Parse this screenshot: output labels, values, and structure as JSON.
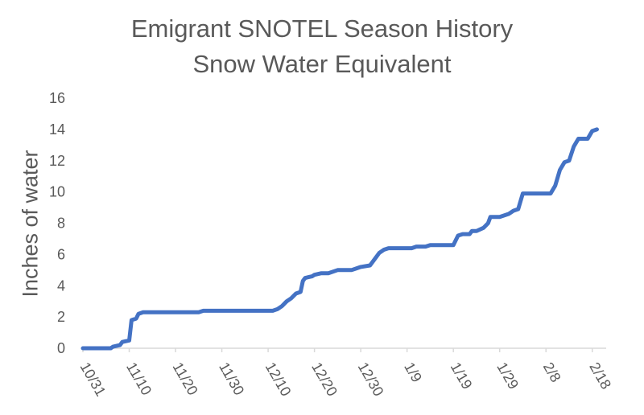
{
  "chart_data": {
    "type": "line",
    "title": "Emigrant SNOTEL Season History",
    "subtitle": "Snow Water Equivalent",
    "ylabel": "Inches of water",
    "xlabel": "",
    "ylim": [
      0,
      16
    ],
    "yticks": [
      0,
      2,
      4,
      6,
      8,
      10,
      12,
      14,
      16
    ],
    "xlim": [
      0,
      113
    ],
    "xticks": [
      {
        "label": "10/31",
        "day": 0
      },
      {
        "label": "11/10",
        "day": 10
      },
      {
        "label": "11/20",
        "day": 20
      },
      {
        "label": "11/30",
        "day": 30
      },
      {
        "label": "12/10",
        "day": 40
      },
      {
        "label": "12/20",
        "day": 50
      },
      {
        "label": "12/30",
        "day": 60
      },
      {
        "label": "1/9",
        "day": 70
      },
      {
        "label": "1/19",
        "day": 80
      },
      {
        "label": "1/29",
        "day": 90
      },
      {
        "label": "2/8",
        "day": 100
      },
      {
        "label": "2/18",
        "day": 110
      }
    ],
    "grid": false,
    "line_color": "#4472C4",
    "series": [
      {
        "name": "",
        "points": [
          [
            0,
            0
          ],
          [
            6,
            0
          ],
          [
            6.5,
            0.1
          ],
          [
            8,
            0.2
          ],
          [
            8.5,
            0.4
          ],
          [
            10,
            0.5
          ],
          [
            10.5,
            1.8
          ],
          [
            11.5,
            1.9
          ],
          [
            12,
            2.2
          ],
          [
            13,
            2.3
          ],
          [
            25,
            2.3
          ],
          [
            26,
            2.4
          ],
          [
            41,
            2.4
          ],
          [
            42,
            2.5
          ],
          [
            43,
            2.7
          ],
          [
            44,
            3.0
          ],
          [
            45,
            3.2
          ],
          [
            46,
            3.5
          ],
          [
            47,
            3.6
          ],
          [
            47.5,
            4.3
          ],
          [
            48,
            4.5
          ],
          [
            49.5,
            4.6
          ],
          [
            50,
            4.7
          ],
          [
            51.5,
            4.8
          ],
          [
            53,
            4.8
          ],
          [
            55,
            5.0
          ],
          [
            58,
            5.0
          ],
          [
            59,
            5.1
          ],
          [
            60,
            5.2
          ],
          [
            62,
            5.3
          ],
          [
            63,
            5.7
          ],
          [
            64,
            6.1
          ],
          [
            65,
            6.3
          ],
          [
            66,
            6.4
          ],
          [
            71,
            6.4
          ],
          [
            72,
            6.5
          ],
          [
            74,
            6.5
          ],
          [
            75,
            6.6
          ],
          [
            80,
            6.6
          ],
          [
            81,
            7.2
          ],
          [
            82,
            7.3
          ],
          [
            83.5,
            7.3
          ],
          [
            84,
            7.5
          ],
          [
            85,
            7.5
          ],
          [
            86.5,
            7.7
          ],
          [
            87.5,
            8.0
          ],
          [
            88,
            8.4
          ],
          [
            90,
            8.4
          ],
          [
            92,
            8.6
          ],
          [
            93,
            8.8
          ],
          [
            94,
            8.9
          ],
          [
            95,
            9.9
          ],
          [
            101,
            9.9
          ],
          [
            102,
            10.4
          ],
          [
            103,
            11.4
          ],
          [
            104,
            11.9
          ],
          [
            105,
            12.0
          ],
          [
            106,
            12.9
          ],
          [
            107,
            13.4
          ],
          [
            109,
            13.4
          ],
          [
            110,
            13.9
          ],
          [
            111,
            14.0
          ]
        ]
      }
    ]
  }
}
